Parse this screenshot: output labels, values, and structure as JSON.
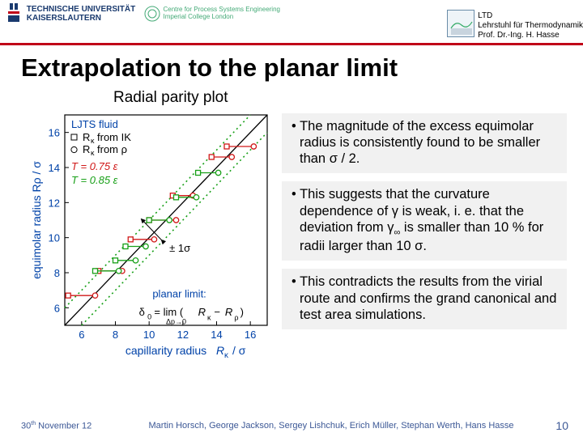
{
  "header": {
    "tuk": "TECHNISCHE UNIVERSITÄT\nKAISERSLAUTERN",
    "cpse": "Centre for Process Systems Engineering\nImperial College London",
    "ltd_line1": "LTD",
    "ltd_line2": "Lehrstuhl für Thermodynamik",
    "ltd_line3": "Prof. Dr.-Ing. H. Hasse"
  },
  "title": "Extrapolation to the planar limit",
  "subtitle": "Radial parity plot",
  "bullets": {
    "b1": "• The magnitude of the excess equimolar radius is consistently found to be smaller than σ / 2.",
    "b2": "• This suggests that the curvature dependence of γ is weak, i. e. that the deviation from γ∞ is smaller than 10 % for radii larger than 10 σ.",
    "b3": "• This contradicts the results from the virial route and confirms the grand canonical and test area simulations."
  },
  "plot": {
    "type": "scatter",
    "xlabel": "capillarity radius Rκ / σ",
    "ylabel": "equimolar radius Rρ / σ",
    "xlim": [
      5,
      17
    ],
    "ylim": [
      5,
      17
    ],
    "xticks": [
      6,
      8,
      10,
      12,
      14,
      16
    ],
    "yticks": [
      6,
      8,
      10,
      12,
      14,
      16
    ],
    "axis_color": "#0042a8",
    "axis_fontsize": 14,
    "tick_fontsize": 13,
    "legend_items": [
      {
        "marker": "square-open",
        "color": "#000",
        "label": "Rκ from IK"
      },
      {
        "marker": "circle-open",
        "color": "#000",
        "label": "Rκ from ρ"
      }
    ],
    "legend_title": "LJTS fluid",
    "temp_lines": [
      {
        "text": "T = 0.75 ε",
        "color": "#d01818"
      },
      {
        "text": "T = 0.85 ε",
        "color": "#18a018"
      }
    ],
    "ref_line": {
      "color": "#000",
      "style": "solid"
    },
    "dotted_lines": {
      "color": "#18a018",
      "offset": 1
    },
    "dotted_label": "± 1σ",
    "planar_text": "planar limit:",
    "planar_formula": "δ₀ = lim (Rκ − Rρ)",
    "planar_sub": "Δp→0",
    "data_red": {
      "color": "#d01818",
      "points": [
        {
          "x": 6,
          "y": 6.7,
          "ex": 0.8
        },
        {
          "x": 7.7,
          "y": 8.1,
          "ex": 0.7
        },
        {
          "x": 9.6,
          "y": 9.9,
          "ex": 0.7
        },
        {
          "x": 10.8,
          "y": 11.0,
          "ex": 0.8
        },
        {
          "x": 12.0,
          "y": 12.4,
          "ex": 0.6
        },
        {
          "x": 14.3,
          "y": 14.6,
          "ex": 0.6
        },
        {
          "x": 15.4,
          "y": 15.2,
          "ex": 0.8
        }
      ]
    },
    "data_green": {
      "color": "#18a018",
      "points": [
        {
          "x": 7.5,
          "y": 8.1,
          "ex": 0.7
        },
        {
          "x": 8.6,
          "y": 8.7,
          "ex": 0.6
        },
        {
          "x": 9.2,
          "y": 9.5,
          "ex": 0.6
        },
        {
          "x": 10.6,
          "y": 11.0,
          "ex": 0.6
        },
        {
          "x": 12.2,
          "y": 12.3,
          "ex": 0.6
        },
        {
          "x": 13.5,
          "y": 13.7,
          "ex": 0.6
        }
      ]
    }
  },
  "footer": {
    "date_day": "30",
    "date_sup": "th",
    "date_rest": " November 12",
    "authors": "Martin Horsch, George Jackson, Sergey Lishchuk, Erich Müller, Stephan Werth, Hans Hasse",
    "page": "10"
  },
  "colors": {
    "header_rule": "#c00018",
    "footer_text": "#3c5896"
  }
}
